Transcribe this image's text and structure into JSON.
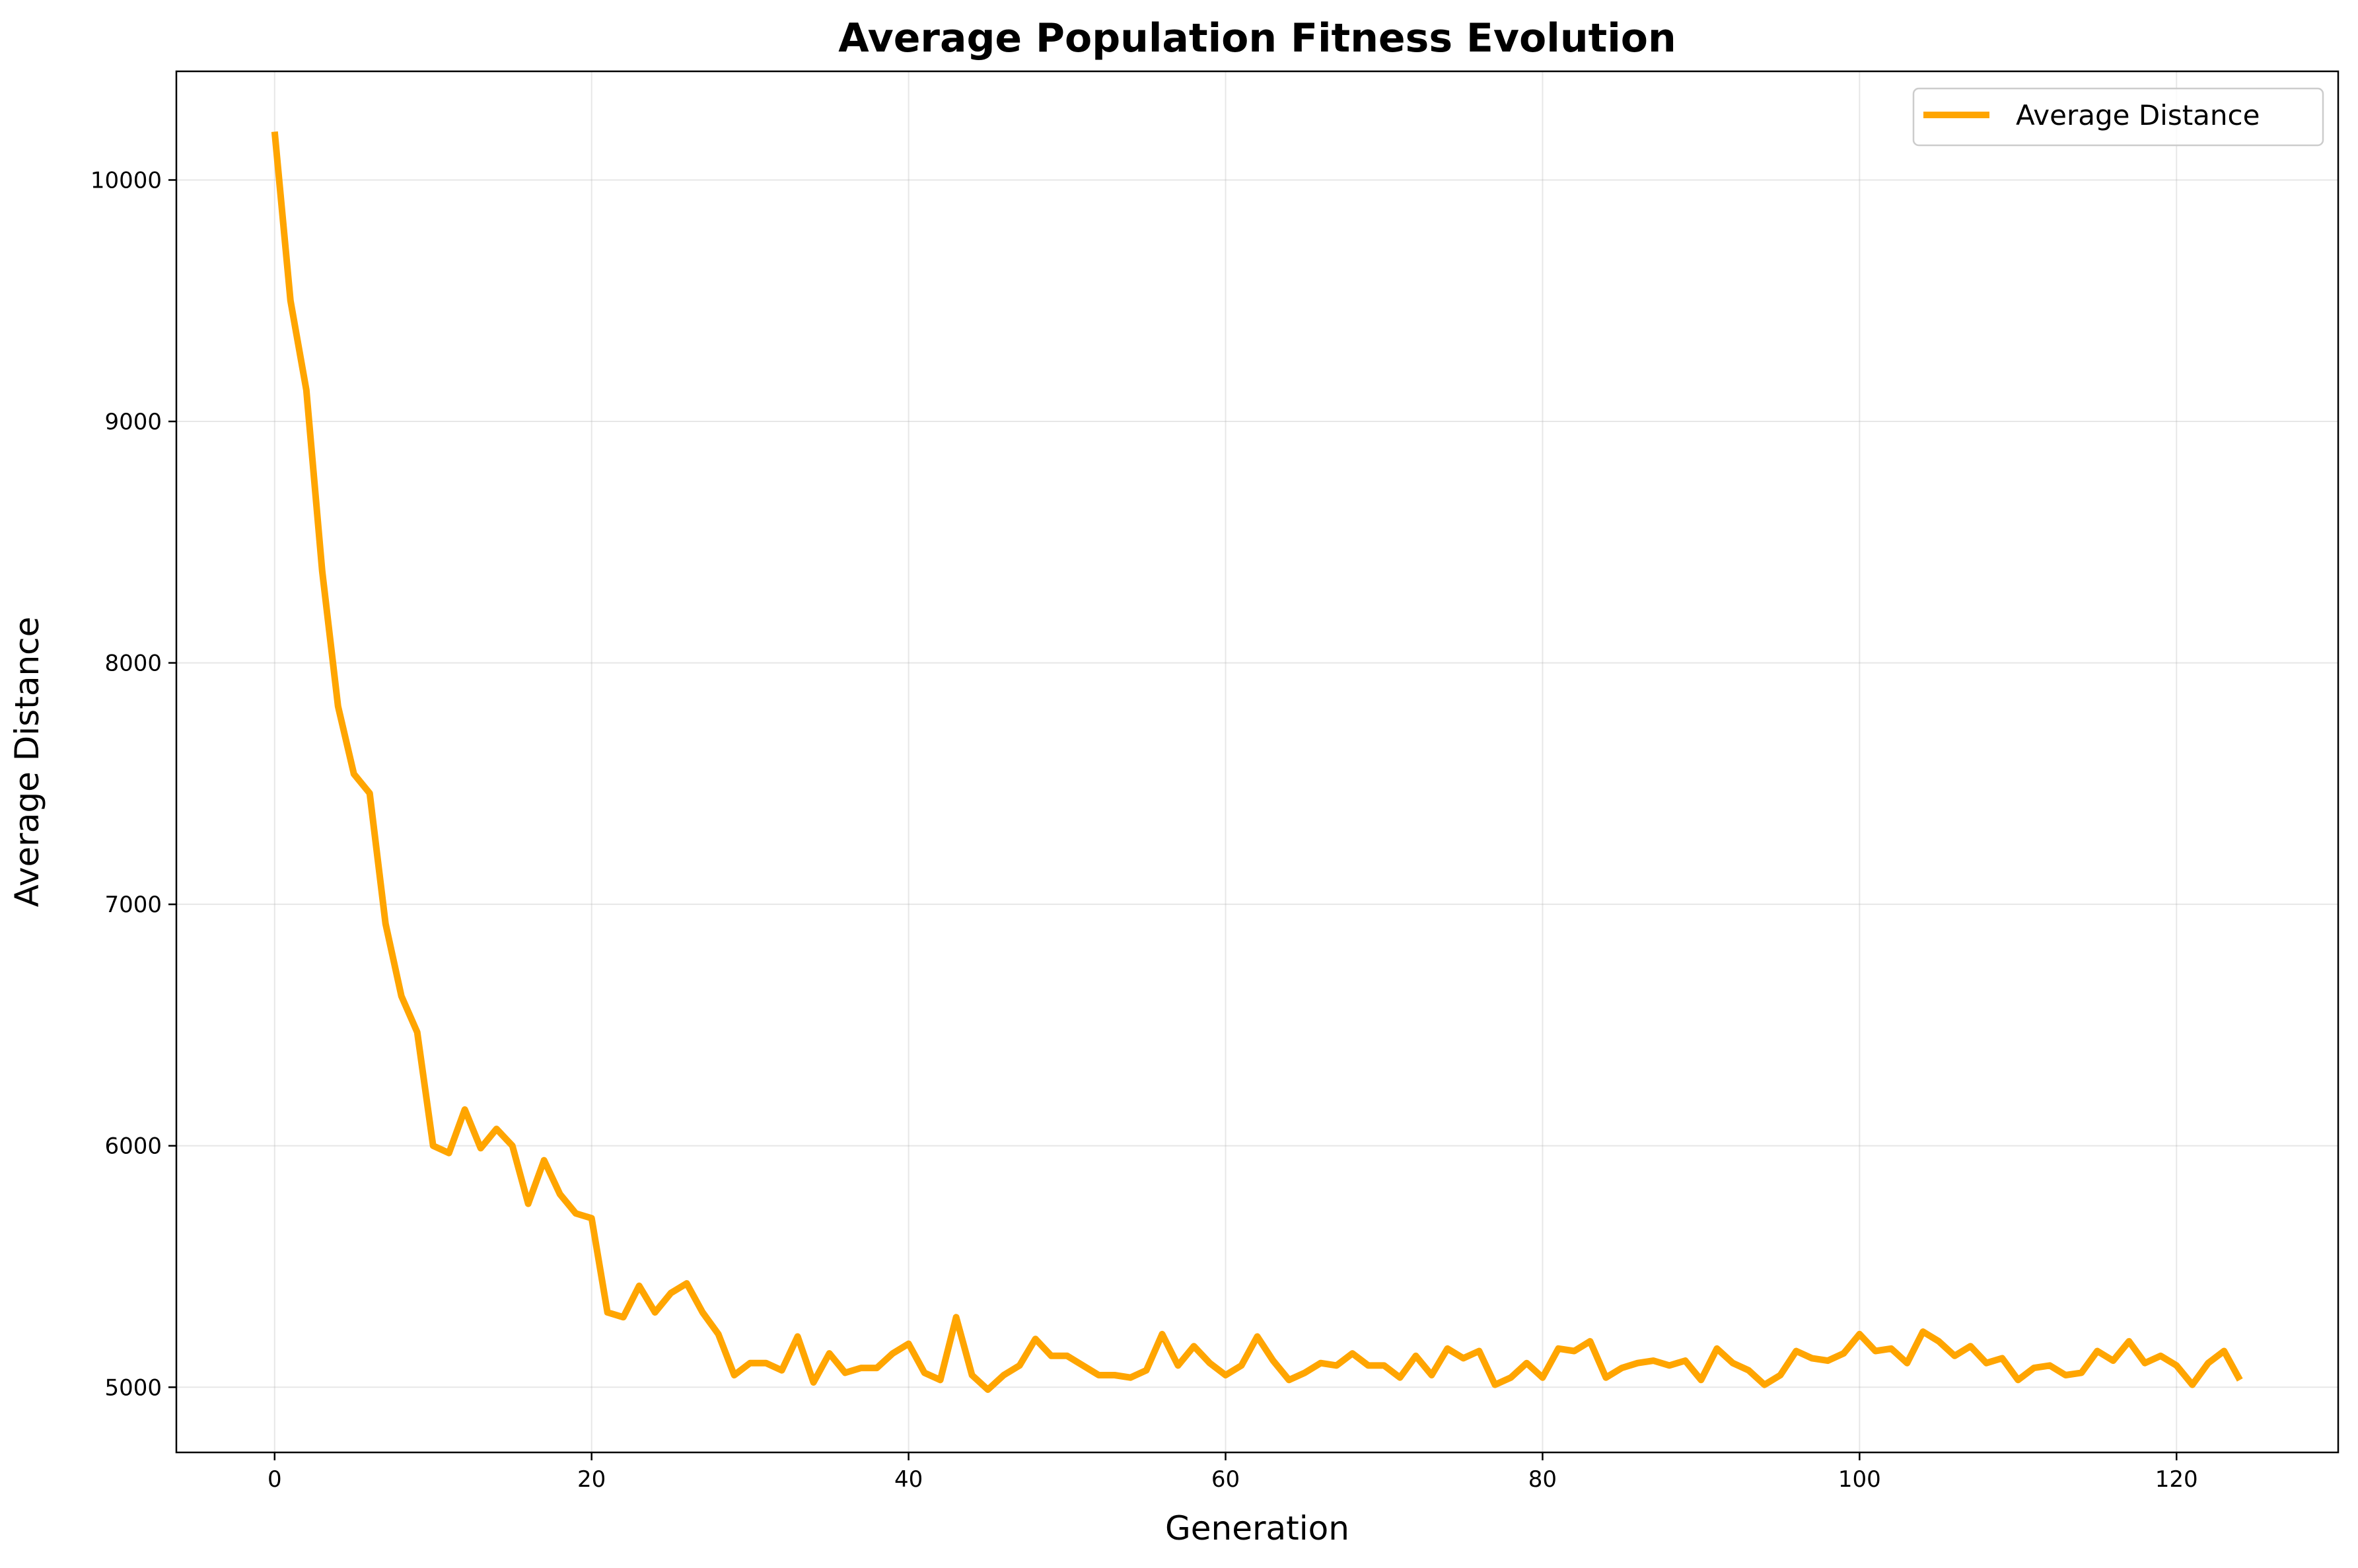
{
  "chart_data": {
    "type": "line",
    "title": "Average Population Fitness Evolution",
    "xlabel": "Generation",
    "ylabel": "Average Distance",
    "xlim": [
      -6.2,
      130.2
    ],
    "ylim": [
      4730,
      10450
    ],
    "xticks": [
      0,
      20,
      40,
      60,
      80,
      100,
      120
    ],
    "yticks": [
      5000,
      6000,
      7000,
      8000,
      9000,
      10000
    ],
    "grid": true,
    "legend": "top-right",
    "series": [
      {
        "name": "Average Distance",
        "color": "#FFA500",
        "x": [
          0,
          1,
          2,
          3,
          4,
          5,
          6,
          7,
          8,
          9,
          10,
          11,
          12,
          13,
          14,
          15,
          16,
          17,
          18,
          19,
          20,
          21,
          22,
          23,
          24,
          25,
          26,
          27,
          28,
          29,
          30,
          31,
          32,
          33,
          34,
          35,
          36,
          37,
          38,
          39,
          40,
          41,
          42,
          43,
          44,
          45,
          46,
          47,
          48,
          49,
          50,
          51,
          52,
          53,
          54,
          55,
          56,
          57,
          58,
          59,
          60,
          61,
          62,
          63,
          64,
          65,
          66,
          67,
          68,
          69,
          70,
          71,
          72,
          73,
          74,
          75,
          76,
          77,
          78,
          79,
          80,
          81,
          82,
          83,
          84,
          85,
          86,
          87,
          88,
          89,
          90,
          91,
          92,
          93,
          94,
          95,
          96,
          97,
          98,
          99,
          100,
          101,
          102,
          103,
          104,
          105,
          106,
          107,
          108,
          109,
          110,
          111,
          112,
          113,
          114,
          115,
          116,
          117,
          118,
          119,
          120,
          121,
          122,
          123,
          124
        ],
        "values": [
          10200,
          9500,
          9130,
          8380,
          7820,
          7540,
          7460,
          6920,
          6620,
          6470,
          6000,
          5970,
          6150,
          5990,
          6070,
          6000,
          5760,
          5940,
          5800,
          5720,
          5700,
          5310,
          5290,
          5420,
          5310,
          5390,
          5430,
          5310,
          5220,
          5050,
          5100,
          5100,
          5070,
          5210,
          5020,
          5140,
          5060,
          5080,
          5080,
          5140,
          5180,
          5060,
          5030,
          5290,
          5050,
          4990,
          5050,
          5090,
          5200,
          5130,
          5130,
          5090,
          5050,
          5050,
          5040,
          5070,
          5220,
          5090,
          5170,
          5100,
          5050,
          5090,
          5210,
          5110,
          5030,
          5060,
          5100,
          5090,
          5140,
          5090,
          5090,
          5040,
          5130,
          5050,
          5160,
          5120,
          5150,
          5010,
          5040,
          5100,
          5040,
          5160,
          5150,
          5190,
          5040,
          5080,
          5100,
          5110,
          5090,
          5110,
          5030,
          5160,
          5100,
          5070,
          5010,
          5050,
          5150,
          5120,
          5110,
          5140,
          5220,
          5150,
          5160,
          5100,
          5230,
          5190,
          5130,
          5170,
          5100,
          5120,
          5030,
          5080,
          5090,
          5050,
          5060,
          5150,
          5110,
          5190,
          5100,
          5130,
          5090,
          5010,
          5100,
          5150,
          5030
        ]
      }
    ]
  }
}
